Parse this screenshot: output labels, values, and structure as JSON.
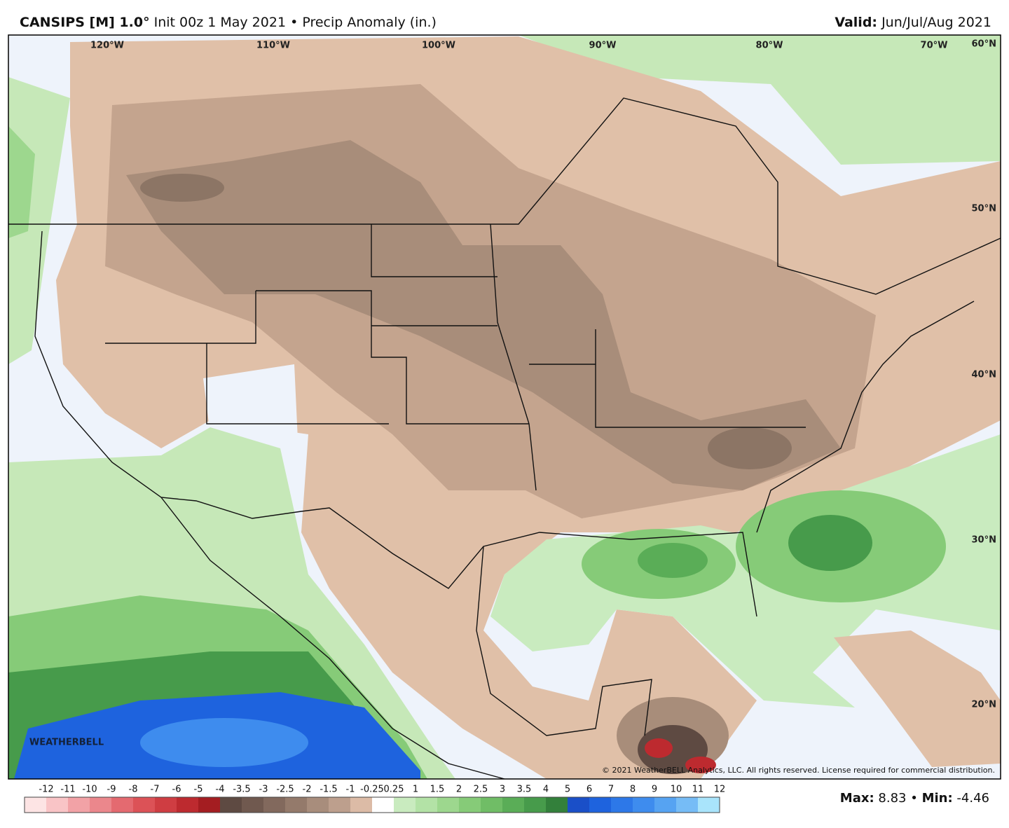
{
  "header": {
    "model": "CANSIPS [M] 1.0°",
    "init": "Init 00z 1 May 2021",
    "separator": "•",
    "field": "Precip Anomaly (in.)",
    "valid_label": "Valid:",
    "valid_value": "Jun/Jul/Aug 2021"
  },
  "map": {
    "lon_labels": [
      "120°W",
      "110°W",
      "100°W",
      "90°W",
      "80°W",
      "70°W"
    ],
    "lat_labels": [
      "60°N",
      "50°N",
      "40°N",
      "30°N",
      "20°N"
    ],
    "logo": "WEATHERBELL",
    "copyright": "© 2021 WeatherBELL Analytics, LLC. All rights reserved. License required for commercial distribution."
  },
  "colorbar": {
    "labels": [
      -12,
      -11,
      -10,
      -9,
      -8,
      -7,
      -6,
      -5,
      -4,
      -3.5,
      -3,
      -2.5,
      -2,
      -1.5,
      -1,
      -0.25,
      0.25,
      1,
      1.5,
      2,
      2.5,
      3,
      3.5,
      4,
      5,
      6,
      7,
      8,
      9,
      10,
      11,
      12
    ],
    "colors": [
      "#fde4e4",
      "#f9c4c6",
      "#f2a2a6",
      "#eb878c",
      "#e46a70",
      "#dc5257",
      "#cf3d42",
      "#bd2a2f",
      "#a41d21",
      "#5e4a42",
      "#70594f",
      "#82695d",
      "#947a6b",
      "#a88d7c",
      "#bd9f8d",
      "#dcbba6",
      "#ffffff",
      "#c9ebbf",
      "#b3e2a6",
      "#9dd78e",
      "#86cb78",
      "#70bd66",
      "#5aad57",
      "#479b4b",
      "#33803b",
      "#1a4fc8",
      "#1e63de",
      "#2d78e8",
      "#3e8cee",
      "#56a3f2",
      "#76bcf6",
      "#a9e4fb"
    ]
  },
  "stats": {
    "max_label": "Max:",
    "max": 8.83,
    "separator": "•",
    "min_label": "Min:",
    "min": -4.46
  }
}
